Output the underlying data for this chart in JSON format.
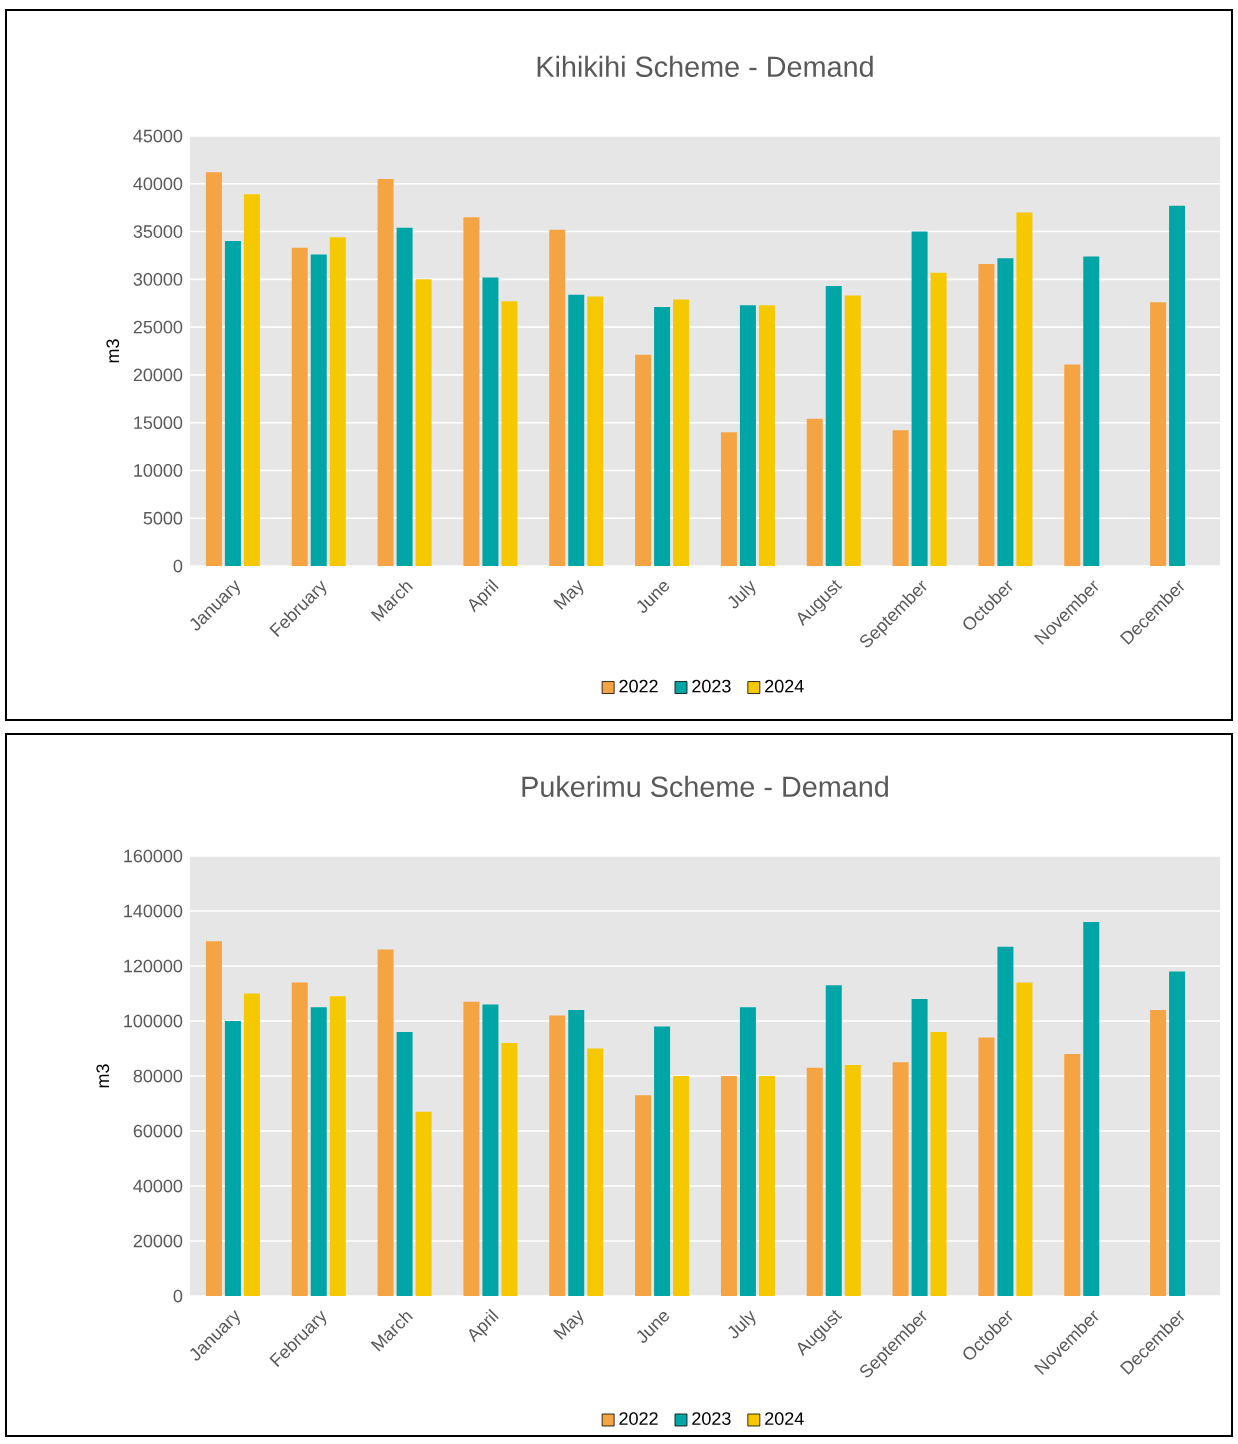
{
  "chart_data": [
    {
      "type": "bar",
      "title": "Kihikihi Scheme - Demand",
      "ylabel": "m3",
      "categories": [
        "January",
        "February",
        "March",
        "April",
        "May",
        "June",
        "July",
        "August",
        "September",
        "October",
        "November",
        "December"
      ],
      "series": [
        {
          "name": "2022",
          "color": "#f4a442",
          "values": [
            41200,
            33300,
            40500,
            36500,
            35200,
            22100,
            14000,
            15400,
            14200,
            31600,
            21100,
            27600
          ]
        },
        {
          "name": "2023",
          "color": "#00a5a5",
          "values": [
            34000,
            32600,
            35400,
            30200,
            28400,
            27100,
            27300,
            29300,
            35000,
            32200,
            32400,
            37700
          ]
        },
        {
          "name": "2024",
          "color": "#f5c800",
          "values": [
            38900,
            34400,
            30000,
            27700,
            28200,
            27900,
            27300,
            28300,
            30700,
            37000,
            null,
            null
          ]
        }
      ],
      "ylim": [
        0,
        45000
      ],
      "yticks": [
        0,
        5000,
        10000,
        15000,
        20000,
        25000,
        30000,
        35000,
        40000,
        45000
      ],
      "grid": "y",
      "legend": "bottom"
    },
    {
      "type": "bar",
      "title": "Pukerimu Scheme - Demand",
      "ylabel": "m3",
      "categories": [
        "January",
        "February",
        "March",
        "April",
        "May",
        "June",
        "July",
        "August",
        "September",
        "October",
        "November",
        "December"
      ],
      "series": [
        {
          "name": "2022",
          "color": "#f4a442",
          "values": [
            129000,
            114000,
            126000,
            107000,
            102000,
            73000,
            80000,
            83000,
            85000,
            94000,
            88000,
            104000
          ]
        },
        {
          "name": "2023",
          "color": "#00a5a5",
          "values": [
            100000,
            105000,
            96000,
            106000,
            104000,
            98000,
            105000,
            113000,
            108000,
            127000,
            136000,
            118000
          ]
        },
        {
          "name": "2024",
          "color": "#f5c800",
          "values": [
            110000,
            109000,
            67000,
            92000,
            90000,
            80000,
            80000,
            84000,
            96000,
            114000,
            null,
            null
          ]
        }
      ],
      "ylim": [
        0,
        160000
      ],
      "yticks": [
        0,
        20000,
        40000,
        60000,
        80000,
        100000,
        120000,
        140000,
        160000
      ],
      "grid": "y",
      "legend": "bottom"
    }
  ]
}
